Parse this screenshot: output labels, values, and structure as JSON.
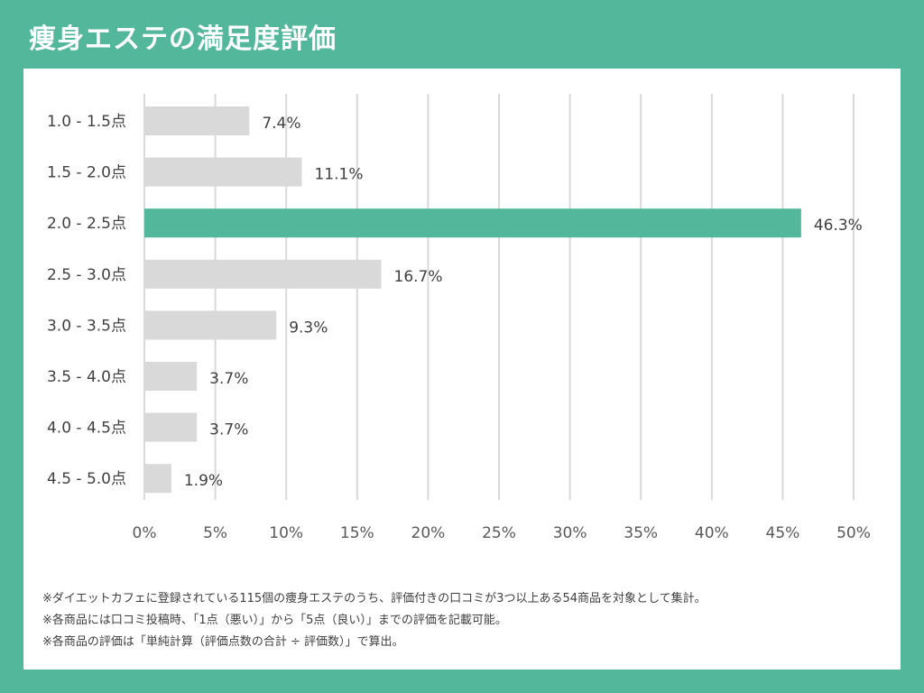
{
  "header": {
    "title": "痩身エステの満足度評価"
  },
  "chart_data": {
    "type": "bar",
    "orientation": "horizontal",
    "title": "痩身エステの満足度評価",
    "categories": [
      "1.0 - 1.5点",
      "1.5 - 2.0点",
      "2.0 - 2.5点",
      "2.5 - 3.0点",
      "3.0 - 3.5点",
      "3.5 - 4.0点",
      "4.0 - 4.5点",
      "4.5 - 5.0点"
    ],
    "values": [
      7.4,
      11.1,
      46.3,
      16.7,
      9.3,
      3.7,
      3.7,
      1.9
    ],
    "value_labels": [
      "7.4%",
      "11.1%",
      "46.3%",
      "16.7%",
      "9.3%",
      "3.7%",
      "3.7%",
      "1.9%"
    ],
    "highlight_index": 2,
    "xlim": [
      0,
      50
    ],
    "xticks": [
      0,
      5,
      10,
      15,
      20,
      25,
      30,
      35,
      40,
      45,
      50
    ],
    "xtick_labels": [
      "0%",
      "5%",
      "10%",
      "15%",
      "20%",
      "25%",
      "30%",
      "35%",
      "40%",
      "45%",
      "50%"
    ],
    "grid": true,
    "colors": {
      "bar": "#d9d9d9",
      "highlight": "#52b79b",
      "grid": "#d9d9d9"
    }
  },
  "notes": [
    "※ダイエットカフェに登録されている115個の痩身エステのうち、評価付きの口コミが3つ以上ある54商品を対象として集計。",
    "※各商品には口コミ投稿時、「1点（悪い）」から「5点（良い）」までの評価を記載可能。",
    "※各商品の評価は「単純計算（評価点数の合計 ÷ 評価数）」で算出。"
  ]
}
